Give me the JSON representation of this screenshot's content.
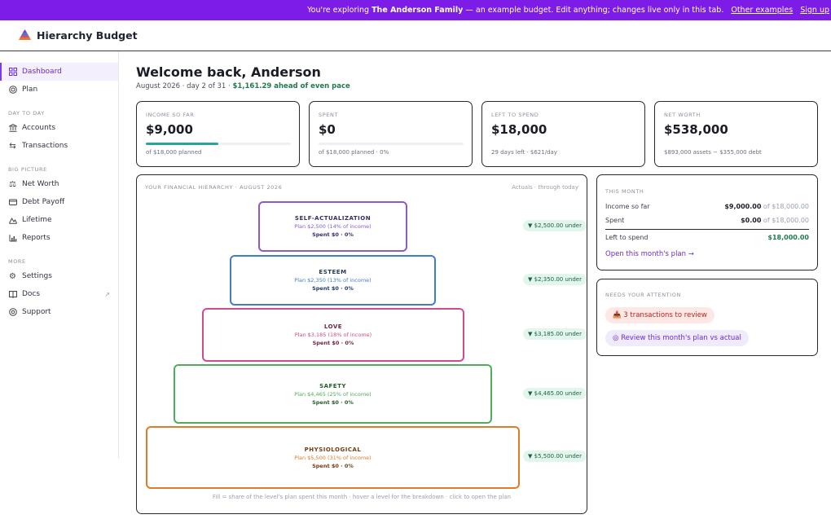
{
  "banner": {
    "prefix": "You're exploring",
    "family": "The Anderson Family",
    "suffix": "— an example budget. Edit anything; changes live only in this tab.",
    "other_examples": "Other examples",
    "sign_up": "Sign up"
  },
  "header": {
    "title": "Hierarchy Budget",
    "logo_icon": "pyramid-logo"
  },
  "sidebar": {
    "dashboard": "Dashboard",
    "plan": "Plan",
    "section_day": "DAY TO DAY",
    "accounts": "Accounts",
    "transactions": "Transactions",
    "section_big": "BIG PICTURE",
    "net_worth": "Net Worth",
    "debt_payoff": "Debt Payoff",
    "lifetime": "Lifetime",
    "reports": "Reports",
    "section_more": "MORE",
    "settings": "Settings",
    "docs": "Docs",
    "support": "Support"
  },
  "main": {
    "welcome": "Welcome back, Anderson",
    "sub_prefix": "August 2026 · day 2 of 31 · ",
    "sub_ahead": "$1,161.29 ahead of even pace"
  },
  "stats": {
    "income": {
      "label": "INCOME SO FAR",
      "value": "$9,000",
      "sub": "of $18,000 planned",
      "progress": 0.5
    },
    "spent": {
      "label": "SPENT",
      "value": "$0",
      "sub": "of $18,000 planned · 0%",
      "progress": 0
    },
    "left": {
      "label": "LEFT TO SPEND",
      "value": "$18,000",
      "sub": "29 days left · $621/day"
    },
    "networth": {
      "label": "NET WORTH",
      "value": "$538,000",
      "sub": "$893,000 assets − $355,000 debt"
    }
  },
  "hierarchy": {
    "title": "YOUR FINANCIAL HIERARCHY · AUGUST 2026",
    "note": "Actuals · through today",
    "levels": [
      {
        "name": "SELF-ACTUALIZATION",
        "plan": "Plan $2,500 (14% of income)",
        "spent": "Spent $0 · 0%",
        "under": "▼ $2,500.00 under",
        "color": "#8b5cc9",
        "text_color": "#3b2a6b"
      },
      {
        "name": "ESTEEM",
        "plan": "Plan $2,350 (13% of income)",
        "spent": "Spent $0 · 0%",
        "under": "▼ $2,350.00 under",
        "color": "#3f7fc7",
        "text_color": "#223a66"
      },
      {
        "name": "LOVE",
        "plan": "Plan $3,185 (18% of income)",
        "spent": "Spent $0 · 0%",
        "under": "▼ $3,185.00 under",
        "color": "#cf4a8e",
        "text_color": "#6e2346"
      },
      {
        "name": "SAFETY",
        "plan": "Plan $4,465 (25% of income)",
        "spent": "Spent $0 · 0%",
        "under": "▼ $4,465.00 under",
        "color": "#4caf5a",
        "text_color": "#245c2c"
      },
      {
        "name": "PHYSIOLOGICAL",
        "plan": "Plan $5,500 (31% of income)",
        "spent": "Spent $0 · 0%",
        "under": "▼ $5,500.00 under",
        "color": "#e07b2a",
        "text_color": "#7a3a10"
      }
    ],
    "footer": "Fill = share of the level's plan spent this month · hover a level for the breakdown · click to open the plan"
  },
  "this_month": {
    "label": "THIS MONTH",
    "income_label": "Income so far",
    "income_value": "$9,000.00",
    "income_of": " of $18,000.00",
    "spent_label": "Spent",
    "spent_value": "$0.00",
    "spent_of": " of $18,000.00",
    "left_label": "Left to spend",
    "left_value": "$18,000.00",
    "link": "Open this month's plan →"
  },
  "attention": {
    "label": "NEEDS YOUR ATTENTION",
    "review_tx": "📥 3 transactions to review",
    "review_plan": "◎ Review this month's plan vs actual"
  }
}
